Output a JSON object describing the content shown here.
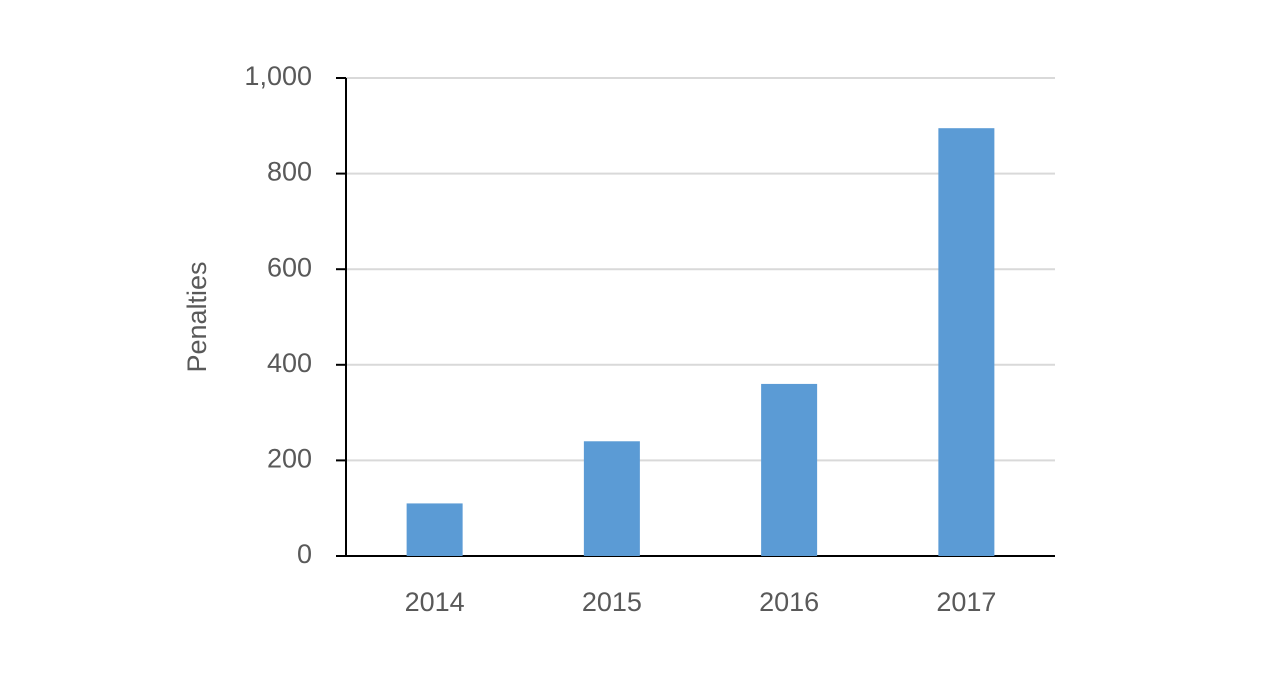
{
  "chart_data": {
    "type": "bar",
    "y_label": "Penalties",
    "categories": [
      "2014",
      "2015",
      "2016",
      "2017"
    ],
    "values": [
      110,
      240,
      360,
      895
    ],
    "color": "#5b9bd5",
    "ylim": [
      0,
      1000
    ],
    "yticks": [
      0,
      200,
      400,
      600,
      {
        "value": 1000,
        "label": "1,000"
      },
      800
    ],
    "grid": true
  }
}
